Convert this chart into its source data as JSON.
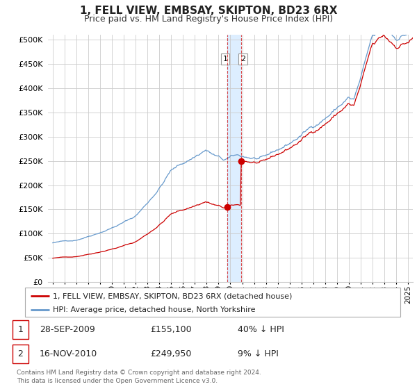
{
  "title": "1, FELL VIEW, EMBSAY, SKIPTON, BD23 6RX",
  "subtitle": "Price paid vs. HM Land Registry's House Price Index (HPI)",
  "title_fontsize": 11,
  "subtitle_fontsize": 9,
  "legend_line1": "1, FELL VIEW, EMBSAY, SKIPTON, BD23 6RX (detached house)",
  "legend_line2": "HPI: Average price, detached house, North Yorkshire",
  "red_color": "#cc0000",
  "blue_color": "#6699cc",
  "shade_color": "#ddeeff",
  "border_color": "#aaaaaa",
  "table_border_color": "#cc0000",
  "grid_color": "#cccccc",
  "text_color": "#333333",
  "footnote_color": "#666666",
  "price_sale1": 155100,
  "price_sale2": 249950,
  "sale1_x": 2009.74,
  "sale2_x": 2010.88,
  "ylim": [
    0,
    510000
  ],
  "xlim_start": 1994.6,
  "xlim_end": 2025.4,
  "table_rows": [
    {
      "num": "1",
      "date": "28-SEP-2009",
      "price": "£155,100",
      "pct": "40% ↓ HPI"
    },
    {
      "num": "2",
      "date": "16-NOV-2010",
      "price": "£249,950",
      "pct": "9% ↓ HPI"
    }
  ],
  "footnote": "Contains HM Land Registry data © Crown copyright and database right 2024.\nThis data is licensed under the Open Government Licence v3.0."
}
